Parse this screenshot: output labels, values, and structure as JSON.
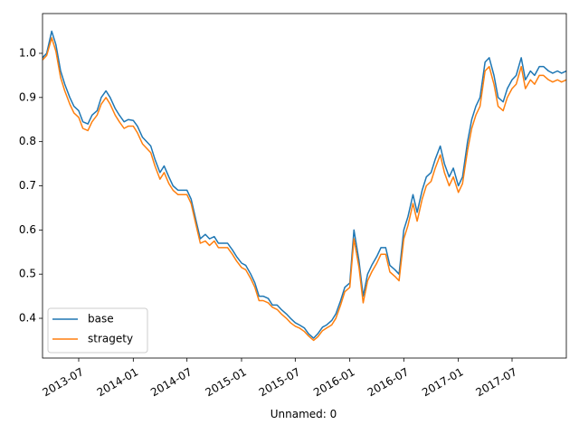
{
  "chart_data": {
    "type": "line",
    "xlabel": "Unnamed: 0",
    "ylabel": "",
    "xlim": [
      "2013-03-01",
      "2017-12-31"
    ],
    "ylim": [
      0.31,
      1.09
    ],
    "grid": false,
    "legend_position": "lower-left",
    "x_ticks": [
      {
        "date": "2013-07-01",
        "label": "2013-07"
      },
      {
        "date": "2014-01-01",
        "label": "2014-01"
      },
      {
        "date": "2014-07-01",
        "label": "2014-07"
      },
      {
        "date": "2015-01-01",
        "label": "2015-01"
      },
      {
        "date": "2015-07-01",
        "label": "2015-07"
      },
      {
        "date": "2016-01-01",
        "label": "2016-01"
      },
      {
        "date": "2016-07-01",
        "label": "2016-07"
      },
      {
        "date": "2017-01-01",
        "label": "2017-01"
      },
      {
        "date": "2017-07-01",
        "label": "2017-07"
      }
    ],
    "y_ticks": [
      {
        "value": 0.4,
        "label": "0.4"
      },
      {
        "value": 0.5,
        "label": "0.5"
      },
      {
        "value": 0.6,
        "label": "0.6"
      },
      {
        "value": 0.7,
        "label": "0.7"
      },
      {
        "value": 0.8,
        "label": "0.8"
      },
      {
        "value": 0.9,
        "label": "0.9"
      },
      {
        "value": 1.0,
        "label": "1.0"
      }
    ],
    "x": [
      "2013-03-01",
      "2013-03-15",
      "2013-04-01",
      "2013-04-15",
      "2013-05-01",
      "2013-05-15",
      "2013-06-01",
      "2013-06-15",
      "2013-07-01",
      "2013-07-15",
      "2013-08-01",
      "2013-08-15",
      "2013-09-01",
      "2013-09-15",
      "2013-10-01",
      "2013-10-15",
      "2013-11-01",
      "2013-11-15",
      "2013-12-01",
      "2013-12-15",
      "2014-01-01",
      "2014-01-15",
      "2014-02-01",
      "2014-02-15",
      "2014-03-01",
      "2014-03-15",
      "2014-04-01",
      "2014-04-15",
      "2014-05-01",
      "2014-05-15",
      "2014-06-01",
      "2014-06-15",
      "2014-07-01",
      "2014-07-15",
      "2014-08-01",
      "2014-08-15",
      "2014-09-01",
      "2014-09-15",
      "2014-10-01",
      "2014-10-15",
      "2014-11-01",
      "2014-11-15",
      "2014-12-01",
      "2014-12-15",
      "2015-01-01",
      "2015-01-15",
      "2015-02-01",
      "2015-02-15",
      "2015-03-01",
      "2015-03-15",
      "2015-04-01",
      "2015-04-15",
      "2015-05-01",
      "2015-05-15",
      "2015-06-01",
      "2015-06-15",
      "2015-07-01",
      "2015-07-15",
      "2015-08-01",
      "2015-08-15",
      "2015-09-01",
      "2015-09-15",
      "2015-10-01",
      "2015-10-15",
      "2015-11-01",
      "2015-11-15",
      "2015-12-01",
      "2015-12-15",
      "2016-01-01",
      "2016-01-15",
      "2016-02-01",
      "2016-02-15",
      "2016-03-01",
      "2016-03-15",
      "2016-04-01",
      "2016-04-15",
      "2016-05-01",
      "2016-05-15",
      "2016-06-01",
      "2016-06-15",
      "2016-07-01",
      "2016-07-15",
      "2016-08-01",
      "2016-08-15",
      "2016-09-01",
      "2016-09-15",
      "2016-10-01",
      "2016-10-15",
      "2016-11-01",
      "2016-11-15",
      "2016-12-01",
      "2016-12-15",
      "2017-01-01",
      "2017-01-15",
      "2017-02-01",
      "2017-02-15",
      "2017-03-01",
      "2017-03-15",
      "2017-04-01",
      "2017-04-15",
      "2017-05-01",
      "2017-05-15",
      "2017-06-01",
      "2017-06-15",
      "2017-07-01",
      "2017-07-15",
      "2017-08-01",
      "2017-08-15",
      "2017-09-01",
      "2017-09-15",
      "2017-10-01",
      "2017-10-15",
      "2017-11-01",
      "2017-11-15",
      "2017-12-01",
      "2017-12-15",
      "2017-12-31"
    ],
    "series": [
      {
        "name": "base",
        "color": "#1f77b4",
        "values": [
          0.99,
          1.0,
          1.05,
          1.02,
          0.96,
          0.93,
          0.9,
          0.88,
          0.87,
          0.845,
          0.84,
          0.86,
          0.87,
          0.9,
          0.915,
          0.9,
          0.875,
          0.86,
          0.845,
          0.85,
          0.848,
          0.835,
          0.81,
          0.8,
          0.79,
          0.76,
          0.73,
          0.745,
          0.72,
          0.7,
          0.69,
          0.69,
          0.69,
          0.67,
          0.62,
          0.58,
          0.59,
          0.58,
          0.585,
          0.57,
          0.57,
          0.57,
          0.555,
          0.54,
          0.525,
          0.52,
          0.5,
          0.48,
          0.45,
          0.45,
          0.445,
          0.43,
          0.43,
          0.42,
          0.41,
          0.4,
          0.39,
          0.385,
          0.378,
          0.365,
          0.355,
          0.365,
          0.38,
          0.385,
          0.395,
          0.41,
          0.44,
          0.47,
          0.48,
          0.6,
          0.53,
          0.45,
          0.5,
          0.52,
          0.54,
          0.56,
          0.56,
          0.52,
          0.51,
          0.5,
          0.6,
          0.63,
          0.68,
          0.64,
          0.69,
          0.72,
          0.73,
          0.76,
          0.79,
          0.75,
          0.72,
          0.74,
          0.7,
          0.72,
          0.8,
          0.85,
          0.88,
          0.9,
          0.98,
          0.99,
          0.95,
          0.9,
          0.89,
          0.92,
          0.94,
          0.95,
          0.99,
          0.94,
          0.96,
          0.95,
          0.97,
          0.97,
          0.96,
          0.955,
          0.96,
          0.955,
          0.96
        ]
      },
      {
        "name": "stragety",
        "color": "#ff7f0e",
        "values": [
          0.985,
          0.995,
          1.035,
          1.005,
          0.945,
          0.915,
          0.885,
          0.865,
          0.855,
          0.83,
          0.825,
          0.845,
          0.86,
          0.885,
          0.9,
          0.885,
          0.86,
          0.845,
          0.83,
          0.835,
          0.835,
          0.82,
          0.795,
          0.785,
          0.775,
          0.745,
          0.715,
          0.73,
          0.705,
          0.69,
          0.68,
          0.68,
          0.68,
          0.66,
          0.61,
          0.57,
          0.575,
          0.565,
          0.575,
          0.56,
          0.56,
          0.56,
          0.545,
          0.53,
          0.515,
          0.51,
          0.49,
          0.47,
          0.44,
          0.44,
          0.435,
          0.425,
          0.42,
          0.41,
          0.4,
          0.39,
          0.382,
          0.378,
          0.37,
          0.36,
          0.35,
          0.358,
          0.372,
          0.378,
          0.385,
          0.4,
          0.43,
          0.46,
          0.47,
          0.58,
          0.515,
          0.435,
          0.485,
          0.505,
          0.525,
          0.545,
          0.545,
          0.505,
          0.495,
          0.485,
          0.58,
          0.61,
          0.66,
          0.62,
          0.67,
          0.7,
          0.71,
          0.74,
          0.77,
          0.73,
          0.7,
          0.72,
          0.685,
          0.705,
          0.78,
          0.83,
          0.86,
          0.88,
          0.96,
          0.97,
          0.93,
          0.88,
          0.87,
          0.9,
          0.92,
          0.93,
          0.97,
          0.92,
          0.94,
          0.93,
          0.95,
          0.95,
          0.94,
          0.935,
          0.94,
          0.935,
          0.94
        ]
      }
    ]
  }
}
